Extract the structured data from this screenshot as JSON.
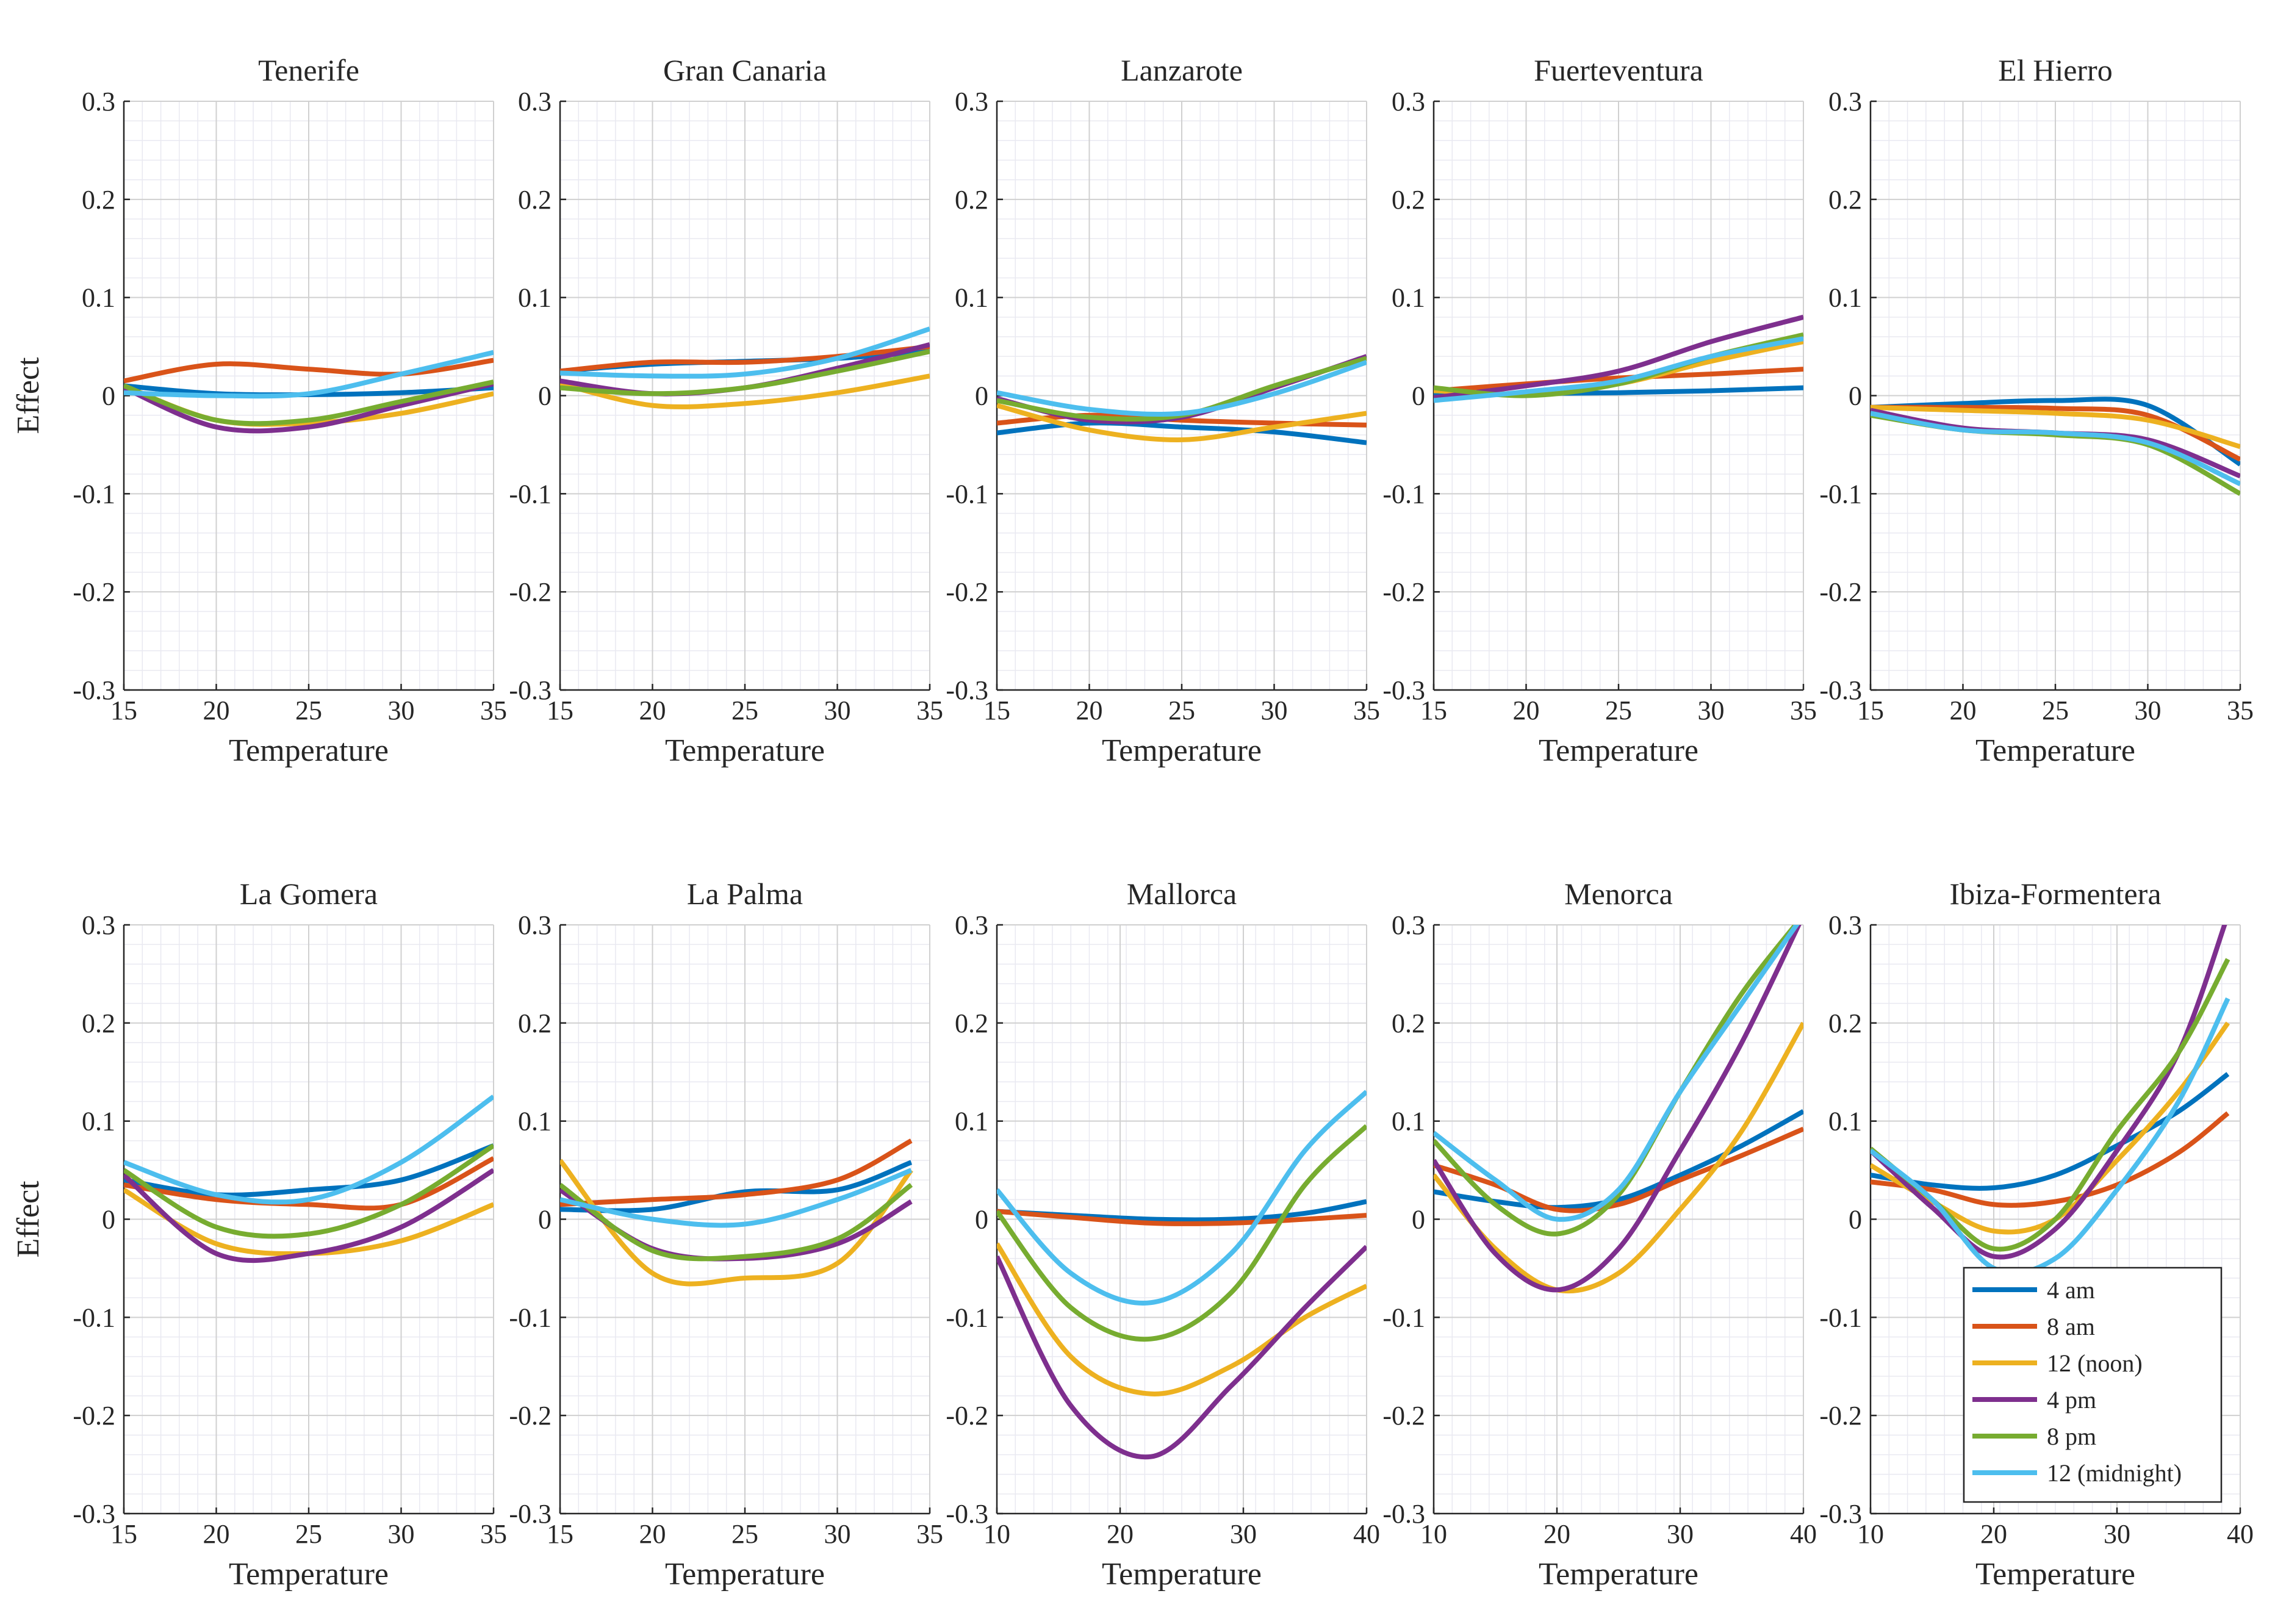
{
  "series_styles": [
    {
      "name": "4 am",
      "color": "#0072BD"
    },
    {
      "name": "8 am",
      "color": "#D95319"
    },
    {
      "name": "12 (noon)",
      "color": "#EDB120"
    },
    {
      "name": "4 pm",
      "color": "#7E2F8E"
    },
    {
      "name": "8 pm",
      "color": "#77AC30"
    },
    {
      "name": "12 (midnight)",
      "color": "#4DBEEE"
    }
  ],
  "chart_data": [
    {
      "type": "line",
      "title": "Tenerife",
      "xlabel": "Temperature",
      "ylabel": "Effect",
      "xlim": [
        15,
        35
      ],
      "ylim": [
        -0.3,
        0.3
      ],
      "xticks": [
        "15",
        "20",
        "25",
        "30",
        "35"
      ],
      "yticks": [
        "-0.3",
        "-0.2",
        "-0.1",
        "0",
        "0.1",
        "0.2",
        "0.3"
      ],
      "x": [
        15,
        20,
        25,
        30,
        35
      ],
      "series": [
        {
          "name": "4 am",
          "values": [
            0.01,
            0.002,
            0.001,
            0.003,
            0.008
          ]
        },
        {
          "name": "8 am",
          "values": [
            0.015,
            0.032,
            0.027,
            0.022,
            0.036
          ]
        },
        {
          "name": "12 (noon)",
          "values": [
            0.01,
            -0.025,
            -0.028,
            -0.018,
            0.002
          ]
        },
        {
          "name": "4 pm",
          "values": [
            0.008,
            -0.032,
            -0.032,
            -0.01,
            0.012
          ]
        },
        {
          "name": "8 pm",
          "values": [
            0.01,
            -0.025,
            -0.025,
            -0.006,
            0.014
          ]
        },
        {
          "name": "12 (midnight)",
          "values": [
            0.003,
            0.0,
            0.002,
            0.022,
            0.044
          ]
        }
      ]
    },
    {
      "type": "line",
      "title": "Gran Canaria",
      "xlabel": "Temperature",
      "ylabel": "",
      "xlim": [
        15,
        35
      ],
      "ylim": [
        -0.3,
        0.3
      ],
      "xticks": [
        "15",
        "20",
        "25",
        "30",
        "35"
      ],
      "yticks": [
        "-0.3",
        "-0.2",
        "-0.1",
        "0",
        "0.1",
        "0.2",
        "0.3"
      ],
      "x": [
        15,
        20,
        25,
        30,
        35
      ],
      "series": [
        {
          "name": "4 am",
          "values": [
            0.025,
            0.032,
            0.035,
            0.038,
            0.045
          ]
        },
        {
          "name": "8 am",
          "values": [
            0.025,
            0.034,
            0.034,
            0.04,
            0.05
          ]
        },
        {
          "name": "12 (noon)",
          "values": [
            0.012,
            -0.01,
            -0.008,
            0.003,
            0.02
          ]
        },
        {
          "name": "4 pm",
          "values": [
            0.015,
            0.002,
            0.008,
            0.028,
            0.052
          ]
        },
        {
          "name": "8 pm",
          "values": [
            0.008,
            0.002,
            0.008,
            0.025,
            0.045
          ]
        },
        {
          "name": "12 (midnight)",
          "values": [
            0.023,
            0.02,
            0.022,
            0.038,
            0.068
          ]
        }
      ]
    },
    {
      "type": "line",
      "title": "Lanzarote",
      "xlabel": "Temperature",
      "ylabel": "",
      "xlim": [
        15,
        35
      ],
      "ylim": [
        -0.3,
        0.3
      ],
      "xticks": [
        "15",
        "20",
        "25",
        "30",
        "35"
      ],
      "yticks": [
        "-0.3",
        "-0.2",
        "-0.1",
        "0",
        "0.1",
        "0.2",
        "0.3"
      ],
      "x": [
        15,
        20,
        25,
        30,
        35
      ],
      "series": [
        {
          "name": "4 am",
          "values": [
            -0.038,
            -0.028,
            -0.032,
            -0.037,
            -0.048
          ]
        },
        {
          "name": "8 am",
          "values": [
            -0.028,
            -0.02,
            -0.025,
            -0.028,
            -0.03
          ]
        },
        {
          "name": "12 (noon)",
          "values": [
            -0.01,
            -0.035,
            -0.045,
            -0.032,
            -0.018
          ]
        },
        {
          "name": "4 pm",
          "values": [
            -0.003,
            -0.025,
            -0.022,
            0.008,
            0.04
          ]
        },
        {
          "name": "8 pm",
          "values": [
            -0.005,
            -0.022,
            -0.02,
            0.01,
            0.038
          ]
        },
        {
          "name": "12 (midnight)",
          "values": [
            0.003,
            -0.014,
            -0.018,
            0.002,
            0.034
          ]
        }
      ]
    },
    {
      "type": "line",
      "title": "Fuerteventura",
      "xlabel": "Temperature",
      "ylabel": "",
      "xlim": [
        15,
        35
      ],
      "ylim": [
        -0.3,
        0.3
      ],
      "xticks": [
        "15",
        "20",
        "25",
        "30",
        "35"
      ],
      "yticks": [
        "-0.3",
        "-0.2",
        "-0.1",
        "0",
        "0.1",
        "0.2",
        "0.3"
      ],
      "x": [
        15,
        20,
        25,
        30,
        35
      ],
      "series": [
        {
          "name": "4 am",
          "values": [
            0.0,
            0.002,
            0.003,
            0.005,
            0.008
          ]
        },
        {
          "name": "8 am",
          "values": [
            0.005,
            0.012,
            0.018,
            0.022,
            0.027
          ]
        },
        {
          "name": "12 (noon)",
          "values": [
            0.005,
            0.002,
            0.012,
            0.035,
            0.055
          ]
        },
        {
          "name": "4 pm",
          "values": [
            -0.002,
            0.01,
            0.025,
            0.055,
            0.08
          ]
        },
        {
          "name": "8 pm",
          "values": [
            0.008,
            0.0,
            0.012,
            0.04,
            0.062
          ]
        },
        {
          "name": "12 (midnight)",
          "values": [
            -0.005,
            0.004,
            0.015,
            0.04,
            0.058
          ]
        }
      ]
    },
    {
      "type": "line",
      "title": "El Hierro",
      "xlabel": "Temperature",
      "ylabel": "",
      "xlim": [
        15,
        35
      ],
      "ylim": [
        -0.3,
        0.3
      ],
      "xticks": [
        "15",
        "20",
        "25",
        "30",
        "35"
      ],
      "yticks": [
        "-0.3",
        "-0.2",
        "-0.1",
        "0",
        "0.1",
        "0.2",
        "0.3"
      ],
      "x": [
        15,
        20,
        25,
        30,
        35
      ],
      "series": [
        {
          "name": "4 am",
          "values": [
            -0.012,
            -0.008,
            -0.005,
            -0.01,
            -0.07
          ]
        },
        {
          "name": "8 am",
          "values": [
            -0.012,
            -0.012,
            -0.013,
            -0.02,
            -0.065
          ]
        },
        {
          "name": "12 (noon)",
          "values": [
            -0.012,
            -0.015,
            -0.018,
            -0.025,
            -0.052
          ]
        },
        {
          "name": "4 pm",
          "values": [
            -0.015,
            -0.033,
            -0.038,
            -0.045,
            -0.082
          ]
        },
        {
          "name": "8 pm",
          "values": [
            -0.02,
            -0.035,
            -0.04,
            -0.05,
            -0.1
          ]
        },
        {
          "name": "12 (midnight)",
          "values": [
            -0.018,
            -0.035,
            -0.038,
            -0.048,
            -0.09
          ]
        }
      ]
    },
    {
      "type": "line",
      "title": "La Gomera",
      "xlabel": "Temperature",
      "ylabel": "Effect",
      "xlim": [
        15,
        35
      ],
      "ylim": [
        -0.3,
        0.3
      ],
      "xticks": [
        "15",
        "20",
        "25",
        "30",
        "35"
      ],
      "yticks": [
        "-0.3",
        "-0.2",
        "-0.1",
        "0",
        "0.1",
        "0.2",
        "0.3"
      ],
      "x": [
        15,
        20,
        25,
        30,
        35
      ],
      "series": [
        {
          "name": "4 am",
          "values": [
            0.04,
            0.025,
            0.03,
            0.04,
            0.075
          ]
        },
        {
          "name": "8 am",
          "values": [
            0.035,
            0.02,
            0.015,
            0.015,
            0.062
          ]
        },
        {
          "name": "12 (noon)",
          "values": [
            0.03,
            -0.025,
            -0.035,
            -0.022,
            0.015
          ]
        },
        {
          "name": "4 pm",
          "values": [
            0.045,
            -0.035,
            -0.035,
            -0.008,
            0.05
          ]
        },
        {
          "name": "8 pm",
          "values": [
            0.05,
            -0.008,
            -0.015,
            0.015,
            0.075
          ]
        },
        {
          "name": "12 (midnight)",
          "values": [
            0.058,
            0.025,
            0.02,
            0.058,
            0.125
          ]
        }
      ]
    },
    {
      "type": "line",
      "title": "La Palma",
      "xlabel": "Temperature",
      "ylabel": "",
      "xlim": [
        15,
        35
      ],
      "ylim": [
        -0.3,
        0.3
      ],
      "xticks": [
        "15",
        "20",
        "25",
        "30",
        "35"
      ],
      "yticks": [
        "-0.3",
        "-0.2",
        "-0.1",
        "0",
        "0.1",
        "0.2",
        "0.3"
      ],
      "x": [
        15,
        20,
        25,
        30,
        34
      ],
      "series": [
        {
          "name": "4 am",
          "values": [
            0.01,
            0.01,
            0.028,
            0.03,
            0.058
          ]
        },
        {
          "name": "8 am",
          "values": [
            0.015,
            0.02,
            0.025,
            0.04,
            0.08
          ]
        },
        {
          "name": "12 (noon)",
          "values": [
            0.06,
            -0.055,
            -0.06,
            -0.045,
            0.05
          ]
        },
        {
          "name": "4 pm",
          "values": [
            0.03,
            -0.03,
            -0.04,
            -0.025,
            0.018
          ]
        },
        {
          "name": "8 pm",
          "values": [
            0.035,
            -0.032,
            -0.038,
            -0.02,
            0.035
          ]
        },
        {
          "name": "12 (midnight)",
          "values": [
            0.02,
            0.0,
            -0.005,
            0.02,
            0.05
          ]
        }
      ]
    },
    {
      "type": "line",
      "title": "Mallorca",
      "xlabel": "Temperature",
      "ylabel": "",
      "xlim": [
        10,
        40
      ],
      "ylim": [
        -0.3,
        0.3
      ],
      "xticks": [
        "10",
        "20",
        "30",
        "40"
      ],
      "yticks": [
        "-0.3",
        "-0.2",
        "-0.1",
        "0",
        "0.1",
        "0.2",
        "0.3"
      ],
      "x": [
        10,
        16,
        22.5,
        29,
        35,
        40
      ],
      "series": [
        {
          "name": "4 am",
          "values": [
            0.008,
            0.004,
            0.0,
            0.0,
            0.006,
            0.018
          ]
        },
        {
          "name": "8 am",
          "values": [
            0.008,
            0.002,
            -0.004,
            -0.004,
            0.0,
            0.004
          ]
        },
        {
          "name": "12 (noon)",
          "values": [
            -0.025,
            -0.14,
            -0.178,
            -0.15,
            -0.1,
            -0.068
          ]
        },
        {
          "name": "4 pm",
          "values": [
            -0.038,
            -0.19,
            -0.242,
            -0.17,
            -0.09,
            -0.028
          ]
        },
        {
          "name": "8 pm",
          "values": [
            0.008,
            -0.09,
            -0.122,
            -0.075,
            0.035,
            0.095
          ]
        },
        {
          "name": "12 (midnight)",
          "values": [
            0.03,
            -0.055,
            -0.085,
            -0.035,
            0.07,
            0.13
          ]
        }
      ]
    },
    {
      "type": "line",
      "title": "Menorca",
      "xlabel": "Temperature",
      "ylabel": "",
      "xlim": [
        10,
        40
      ],
      "ylim": [
        -0.3,
        0.3
      ],
      "xticks": [
        "10",
        "20",
        "30",
        "40"
      ],
      "yticks": [
        "-0.3",
        "-0.2",
        "-0.1",
        "0",
        "0.1",
        "0.2",
        "0.3"
      ],
      "x": [
        10,
        15,
        20,
        25,
        30,
        35,
        40
      ],
      "series": [
        {
          "name": "4 am",
          "values": [
            0.028,
            0.018,
            0.012,
            0.02,
            0.045,
            0.075,
            0.11
          ]
        },
        {
          "name": "8 am",
          "values": [
            0.055,
            0.035,
            0.01,
            0.015,
            0.04,
            0.065,
            0.092
          ]
        },
        {
          "name": "12 (noon)",
          "values": [
            0.045,
            -0.03,
            -0.072,
            -0.055,
            0.01,
            0.09,
            0.2
          ]
        },
        {
          "name": "4 pm",
          "values": [
            0.06,
            -0.035,
            -0.072,
            -0.03,
            0.07,
            0.18,
            0.31
          ]
        },
        {
          "name": "8 pm",
          "values": [
            0.08,
            0.015,
            -0.015,
            0.025,
            0.13,
            0.23,
            0.31
          ]
        },
        {
          "name": "12 (midnight)",
          "values": [
            0.088,
            0.04,
            0.0,
            0.03,
            0.13,
            0.22,
            0.31
          ]
        }
      ]
    },
    {
      "type": "line",
      "title": "Ibiza-Formentera",
      "xlabel": "Temperature",
      "ylabel": "",
      "xlim": [
        10,
        40
      ],
      "ylim": [
        -0.3,
        0.3
      ],
      "xticks": [
        "10",
        "20",
        "30",
        "40"
      ],
      "yticks": [
        "-0.3",
        "-0.2",
        "-0.1",
        "0",
        "0.1",
        "0.2",
        "0.3"
      ],
      "x": [
        10,
        15,
        20,
        25,
        30,
        35,
        39
      ],
      "series": [
        {
          "name": "4 am",
          "values": [
            0.045,
            0.035,
            0.032,
            0.045,
            0.075,
            0.11,
            0.148
          ]
        },
        {
          "name": "8 am",
          "values": [
            0.038,
            0.03,
            0.015,
            0.018,
            0.035,
            0.068,
            0.108
          ]
        },
        {
          "name": "12 (noon)",
          "values": [
            0.055,
            0.018,
            -0.012,
            0.0,
            0.06,
            0.13,
            0.2
          ]
        },
        {
          "name": "4 pm",
          "values": [
            0.07,
            0.012,
            -0.038,
            -0.01,
            0.07,
            0.17,
            0.31
          ]
        },
        {
          "name": "8 pm",
          "values": [
            0.072,
            0.02,
            -0.03,
            0.0,
            0.09,
            0.17,
            0.265
          ]
        },
        {
          "name": "12 (midnight)",
          "values": [
            0.07,
            0.02,
            -0.05,
            -0.04,
            0.03,
            0.12,
            0.225
          ]
        }
      ]
    }
  ],
  "legend": {
    "placement": "bottom-right of Ibiza-Formentera panel",
    "entries": [
      "4 am",
      "8 am",
      "12 (noon)",
      "4 pm",
      "8 pm",
      "12 (midnight)"
    ]
  }
}
